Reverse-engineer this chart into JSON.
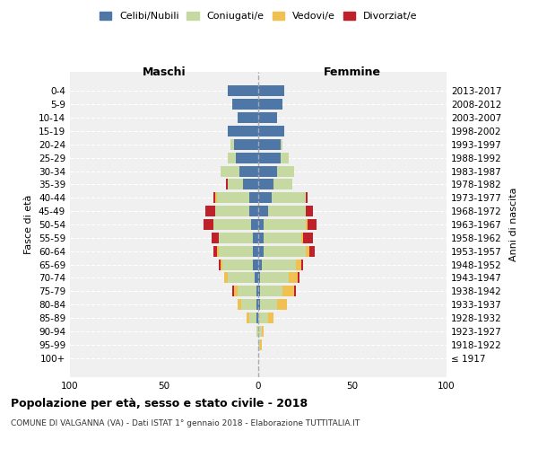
{
  "age_groups": [
    "100+",
    "95-99",
    "90-94",
    "85-89",
    "80-84",
    "75-79",
    "70-74",
    "65-69",
    "60-64",
    "55-59",
    "50-54",
    "45-49",
    "40-44",
    "35-39",
    "30-34",
    "25-29",
    "20-24",
    "15-19",
    "10-14",
    "5-9",
    "0-4"
  ],
  "year_labels": [
    "≤ 1917",
    "1918-1922",
    "1923-1927",
    "1928-1932",
    "1933-1937",
    "1938-1942",
    "1943-1947",
    "1948-1952",
    "1953-1957",
    "1958-1962",
    "1963-1967",
    "1968-1972",
    "1973-1977",
    "1978-1982",
    "1983-1987",
    "1988-1992",
    "1993-1997",
    "1998-2002",
    "2003-2007",
    "2008-2012",
    "2013-2017"
  ],
  "males": {
    "celibi": [
      0,
      0,
      0,
      1,
      1,
      1,
      2,
      3,
      3,
      3,
      4,
      5,
      5,
      8,
      10,
      12,
      13,
      16,
      11,
      14,
      16
    ],
    "coniugati": [
      0,
      0,
      1,
      4,
      8,
      10,
      14,
      16,
      18,
      18,
      20,
      18,
      17,
      8,
      10,
      4,
      2,
      0,
      0,
      0,
      0
    ],
    "vedovi": [
      0,
      0,
      0,
      1,
      2,
      2,
      2,
      1,
      1,
      0,
      0,
      0,
      1,
      0,
      0,
      0,
      0,
      0,
      0,
      0,
      0
    ],
    "divorziati": [
      0,
      0,
      0,
      0,
      0,
      1,
      0,
      1,
      2,
      4,
      5,
      5,
      1,
      1,
      0,
      0,
      0,
      0,
      0,
      0,
      0
    ]
  },
  "females": {
    "nubili": [
      0,
      0,
      0,
      0,
      1,
      1,
      1,
      2,
      3,
      3,
      3,
      5,
      7,
      8,
      10,
      12,
      12,
      14,
      10,
      13,
      14
    ],
    "coniugate": [
      0,
      1,
      2,
      5,
      9,
      12,
      15,
      18,
      22,
      20,
      22,
      20,
      18,
      10,
      9,
      4,
      1,
      0,
      0,
      0,
      0
    ],
    "vedove": [
      0,
      1,
      1,
      3,
      5,
      6,
      5,
      3,
      2,
      1,
      1,
      0,
      0,
      0,
      0,
      0,
      0,
      0,
      0,
      0,
      0
    ],
    "divorziate": [
      0,
      0,
      0,
      0,
      0,
      1,
      1,
      1,
      3,
      5,
      5,
      4,
      1,
      0,
      0,
      0,
      0,
      0,
      0,
      0,
      0
    ]
  },
  "color_celibi": "#4e77a8",
  "color_coniugati": "#c5d9a0",
  "color_vedovi": "#f0c050",
  "color_divorziati": "#c0202a",
  "xlim": 100,
  "title": "Popolazione per età, sesso e stato civile - 2018",
  "subtitle": "COMUNE DI VALGANNA (VA) - Dati ISTAT 1° gennaio 2018 - Elaborazione TUTTITALIA.IT",
  "ylabel": "Fasce di età",
  "ylabel_right": "Anni di nascita",
  "legend_labels": [
    "Celibi/Nubili",
    "Coniugati/e",
    "Vedovi/e",
    "Divorziat/e"
  ],
  "header_maschi": "Maschi",
  "header_femmine": "Femmine",
  "bg_color": "#f0f0f0",
  "grid_color": "#ffffff",
  "axis_label_size": 8,
  "tick_label_size": 7.5
}
